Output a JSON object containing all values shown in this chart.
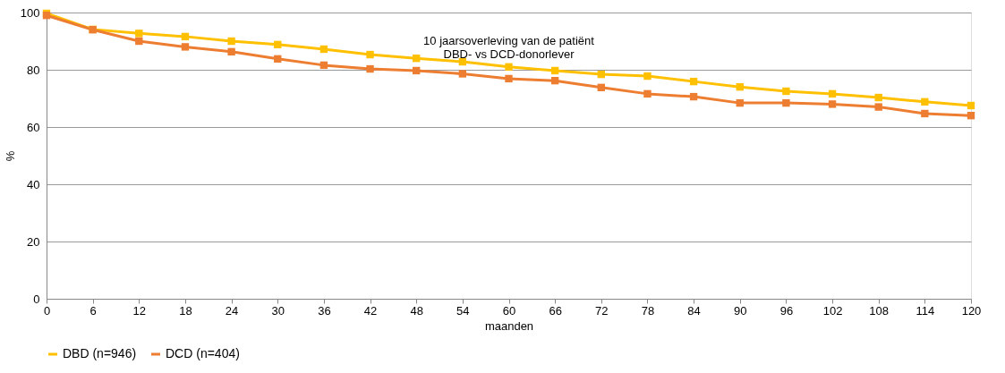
{
  "chart_data": {
    "type": "line",
    "title": [
      "10 jaarsoverleving van de patiënt",
      "DBD- vs DCD-donorlever"
    ],
    "xlabel": "maanden",
    "ylabel": "%",
    "x": [
      0,
      6,
      12,
      18,
      24,
      30,
      36,
      42,
      48,
      54,
      60,
      66,
      72,
      78,
      84,
      90,
      96,
      102,
      108,
      114,
      120
    ],
    "xlim": [
      0,
      120
    ],
    "xticks": [
      0,
      6,
      12,
      18,
      24,
      30,
      36,
      42,
      48,
      54,
      60,
      66,
      72,
      78,
      84,
      90,
      96,
      102,
      108,
      114,
      120
    ],
    "ylim": [
      0,
      100
    ],
    "yticks": [
      0,
      20,
      40,
      60,
      80,
      100
    ],
    "series": [
      {
        "name": "DBD (n=946)",
        "color": "#ffc000",
        "values": [
          99.7,
          94.1,
          92.7,
          91.6,
          90,
          88.8,
          87.2,
          85.3,
          84,
          82.8,
          81,
          79.7,
          78.4,
          77.8,
          75.9,
          74,
          72.5,
          71.6,
          70.3,
          68.8,
          67.5
        ]
      },
      {
        "name": "DCD (n=404)",
        "color": "#ed7d31",
        "values": [
          99,
          94,
          90,
          88,
          86.3,
          83.8,
          81.6,
          80.3,
          79.7,
          78.6,
          76.9,
          76.2,
          73.8,
          71.6,
          70.6,
          68.4,
          68.4,
          68,
          67,
          64.7,
          64
        ]
      }
    ],
    "grid": "y",
    "legend": "bottom",
    "marker": "square",
    "line_style": "solid"
  }
}
